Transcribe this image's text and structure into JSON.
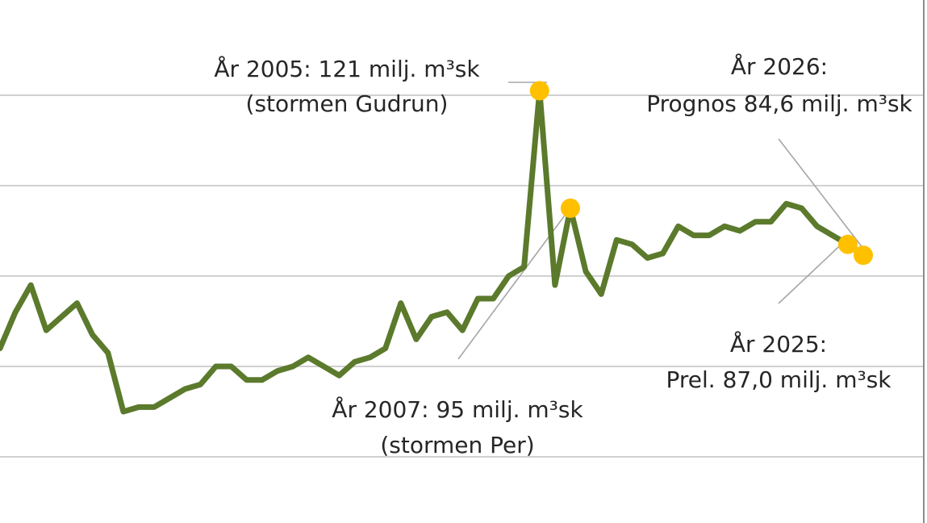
{
  "chart_data": {
    "type": "line",
    "title": "",
    "xlabel": "",
    "ylabel": "",
    "grid": true,
    "legend": "none",
    "series": [
      {
        "color": "#5b7a2c",
        "points": [
          [
            1970,
            64
          ],
          [
            1971,
            72
          ],
          [
            1972,
            78
          ],
          [
            1973,
            68
          ],
          [
            1974,
            71
          ],
          [
            1975,
            74
          ],
          [
            1976,
            67
          ],
          [
            1977,
            63
          ],
          [
            1978,
            50
          ],
          [
            1979,
            51
          ],
          [
            1980,
            51
          ],
          [
            1981,
            53
          ],
          [
            1982,
            55
          ],
          [
            1983,
            56
          ],
          [
            1984,
            60
          ],
          [
            1985,
            60
          ],
          [
            1986,
            57
          ],
          [
            1987,
            57
          ],
          [
            1988,
            59
          ],
          [
            1989,
            60
          ],
          [
            1990,
            62
          ],
          [
            1991,
            60
          ],
          [
            1992,
            58
          ],
          [
            1993,
            61
          ],
          [
            1994,
            62
          ],
          [
            1995,
            64
          ],
          [
            1996,
            74
          ],
          [
            1997,
            66
          ],
          [
            1998,
            71
          ],
          [
            1999,
            72
          ],
          [
            2000,
            68
          ],
          [
            2001,
            75
          ],
          [
            2002,
            75
          ],
          [
            2003,
            80
          ],
          [
            2004,
            82
          ],
          [
            2005,
            121
          ],
          [
            2006,
            78
          ],
          [
            2007,
            95
          ],
          [
            2008,
            81
          ],
          [
            2009,
            76
          ],
          [
            2010,
            88
          ],
          [
            2011,
            87
          ],
          [
            2012,
            84
          ],
          [
            2013,
            85
          ],
          [
            2014,
            91
          ],
          [
            2015,
            89
          ],
          [
            2016,
            89
          ],
          [
            2017,
            91
          ],
          [
            2018,
            90
          ],
          [
            2019,
            92
          ],
          [
            2020,
            92
          ],
          [
            2021,
            96
          ],
          [
            2022,
            95
          ],
          [
            2023,
            91
          ],
          [
            2024,
            89
          ],
          [
            2025,
            87.0
          ],
          [
            2026,
            84.6
          ]
        ]
      }
    ],
    "highlights": [
      {
        "x": 2005,
        "y": 121
      },
      {
        "x": 2007,
        "y": 95
      },
      {
        "x": 2025,
        "y": 87.0
      },
      {
        "x": 2026,
        "y": 84.6
      }
    ],
    "highlight_color": "#ffc000",
    "ylim": [
      0,
      130
    ],
    "gridlines": [
      40,
      60,
      80,
      100,
      120
    ],
    "annotations": {
      "a2005": {
        "line1": "År 2005: 121 milj. m³sk",
        "line2": "(stormen Gudrun)"
      },
      "a2007": {
        "line1": "År 2007: 95 milj. m³sk",
        "line2": "(stormen Per)"
      },
      "a2025": {
        "line1": "År 2025:",
        "line2": "Prel. 87,0 milj. m³sk"
      },
      "a2026": {
        "line1": "År 2026:",
        "line2": "Prognos 84,6 milj. m³sk"
      }
    }
  }
}
